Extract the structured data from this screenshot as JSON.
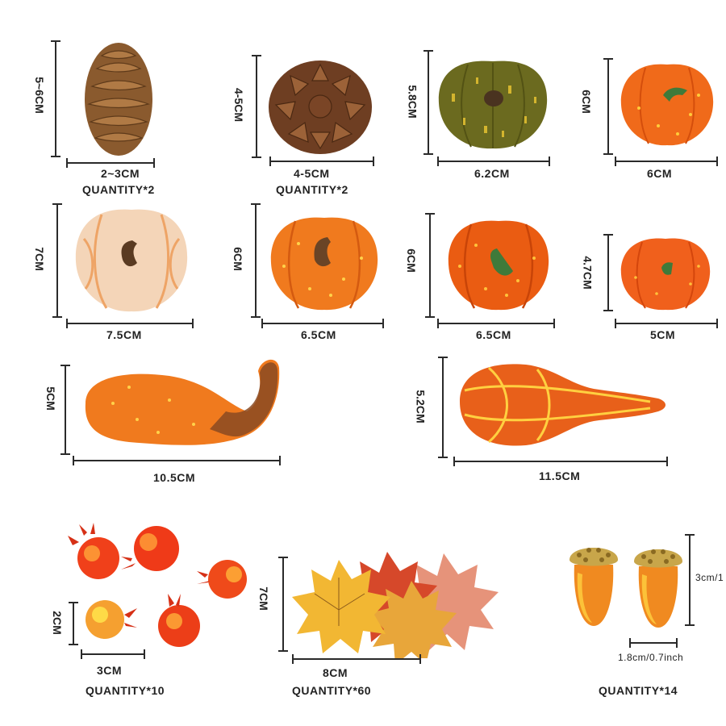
{
  "items": [
    {
      "name": "pine-cone-small",
      "height_label": "5~6CM",
      "width_label": "2~3CM",
      "quantity": "QUANTITY*2"
    },
    {
      "name": "pine-cone-large",
      "height_label": "4-5CM",
      "width_label": "4-5CM",
      "quantity": "QUANTITY*2"
    },
    {
      "name": "pumpkin-green",
      "height_label": "5.8CM",
      "width_label": "6.2CM"
    },
    {
      "name": "pumpkin-orange-1",
      "height_label": "6CM",
      "width_label": "6CM"
    },
    {
      "name": "pumpkin-white",
      "height_label": "7CM",
      "width_label": "7.5CM"
    },
    {
      "name": "pumpkin-orange-2",
      "height_label": "6CM",
      "width_label": "6.5CM"
    },
    {
      "name": "pumpkin-orange-3",
      "height_label": "6CM",
      "width_label": "6.5CM"
    },
    {
      "name": "pumpkin-small",
      "height_label": "4.7CM",
      "width_label": "5CM"
    },
    {
      "name": "gourd-swan",
      "height_label": "5CM",
      "width_label": "10.5CM"
    },
    {
      "name": "gourd-long",
      "height_label": "5.2CM",
      "width_label": "11.5CM"
    },
    {
      "name": "pomegranates",
      "height_label": "2CM",
      "width_label": "3CM",
      "quantity": "QUANTITY*10"
    },
    {
      "name": "maple-leaves",
      "height_label": "7CM",
      "width_label": "8CM",
      "quantity": "QUANTITY*60"
    },
    {
      "name": "acorns",
      "height_label": "3cm/1",
      "width_label": "1.8cm/0.7inch",
      "quantity": "QUANTITY*14"
    }
  ],
  "colors": {
    "orange": "#f07a1e",
    "deep_orange": "#e25a12",
    "green": "#6b6a1f",
    "cream": "#f4d5b8",
    "stem": "#5a3b22",
    "leaf_yellow": "#f2b733",
    "leaf_red": "#d6482a"
  }
}
